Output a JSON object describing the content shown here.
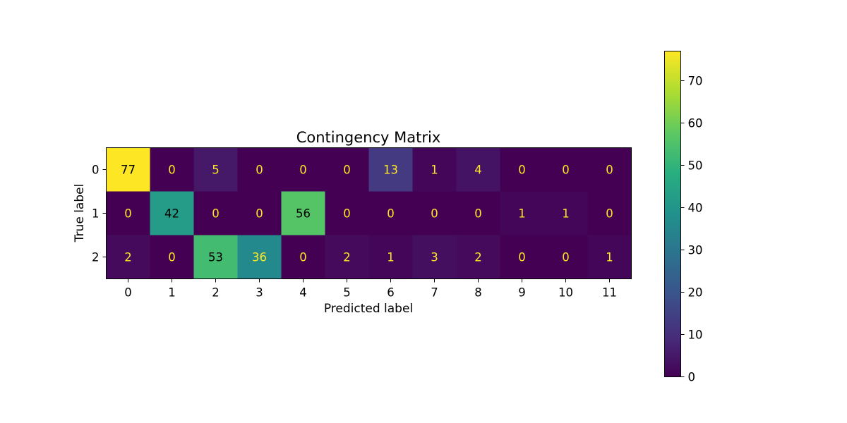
{
  "chart_data": {
    "type": "heatmap",
    "title": "Contingency Matrix",
    "xlabel": "Predicted label",
    "ylabel": "True label",
    "x_categories": [
      "0",
      "1",
      "2",
      "3",
      "4",
      "5",
      "6",
      "7",
      "8",
      "9",
      "10",
      "11"
    ],
    "y_categories": [
      "0",
      "1",
      "2"
    ],
    "values": [
      [
        77,
        0,
        5,
        0,
        0,
        0,
        13,
        1,
        4,
        0,
        0,
        0
      ],
      [
        0,
        42,
        0,
        0,
        56,
        0,
        0,
        0,
        0,
        1,
        1,
        0
      ],
      [
        2,
        0,
        53,
        36,
        0,
        2,
        1,
        3,
        2,
        0,
        0,
        1
      ]
    ],
    "colormap": "viridis",
    "color_range": [
      0,
      77
    ],
    "colorbar_ticks": [
      0,
      10,
      20,
      30,
      40,
      50,
      60,
      70
    ],
    "text_color_light": "#fde725",
    "text_color_dark": "#000000",
    "legend": "colorbar-right"
  }
}
